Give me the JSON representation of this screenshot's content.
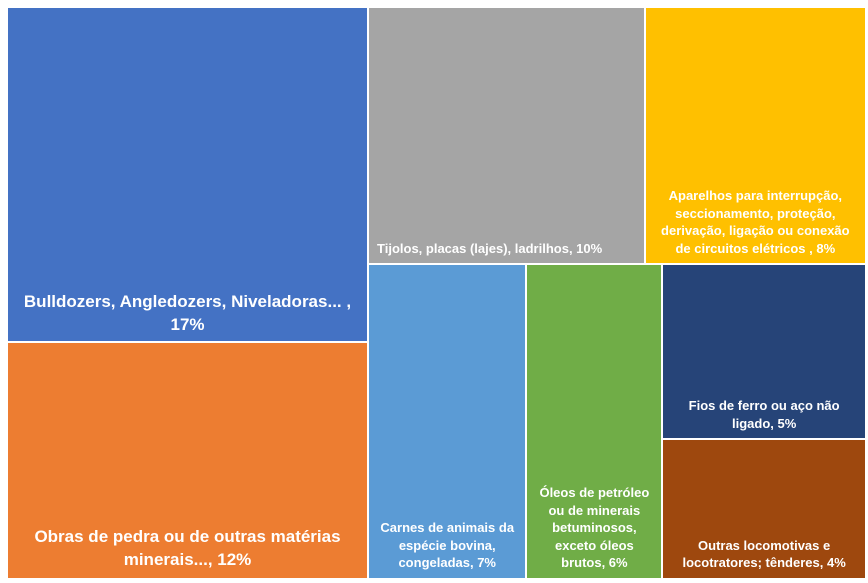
{
  "chart_data": {
    "type": "treemap",
    "labels": [
      "Bulldozers, Angledozers, Niveladoras... , 17%",
      "Obras de pedra ou de outras matérias minerais..., 12%",
      "Tijolos, placas (lajes), ladrilhos, 10%",
      "Aparelhos para interrupção, seccionamento, proteção, derivação, ligação ou conexão de circuitos elétricos , 8%",
      "Carnes de animais da espécie bovina, congeladas, 7%",
      "Óleos de petróleo ou de minerais betuminosos, exceto óleos brutos, 6%",
      "Fios de ferro ou aço não ligado, 5%",
      "Outras locomotivas e locotratores; tênderes, 4%"
    ],
    "values": [
      17,
      12,
      10,
      8,
      7,
      6,
      5,
      4
    ],
    "colors": [
      "#4472c4",
      "#ed7d31",
      "#a5a5a5",
      "#ffc000",
      "#5b9bd5",
      "#70ad47",
      "#264478",
      "#9e480e"
    ]
  }
}
